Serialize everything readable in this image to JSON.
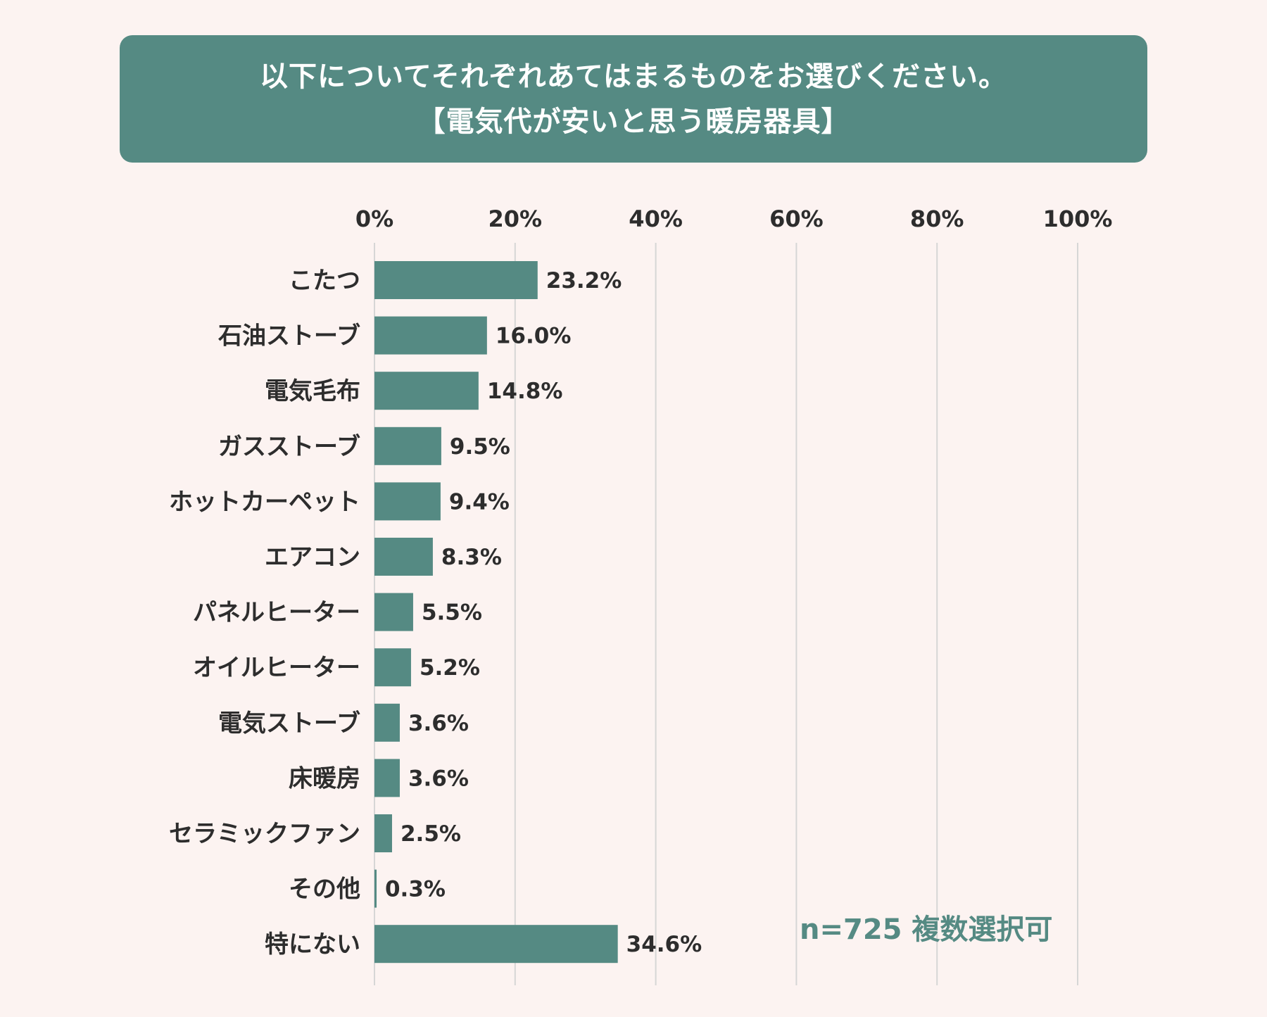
{
  "title": {
    "line1": "以下についてそれぞれあてはまるものをお選びください。",
    "line2": "【電気代が安いと思う暖房器具】"
  },
  "note": "n=725 複数選択可",
  "colors": {
    "bar": "#558a83",
    "banner": "#558a83",
    "background": "#fcf3f1",
    "grid": "#d6d6d6",
    "text": "#2d2d2d"
  },
  "chart_data": {
    "type": "bar",
    "orientation": "horizontal",
    "categories": [
      "こたつ",
      "石油ストーブ",
      "電気毛布",
      "ガスストーブ",
      "ホットカーペット",
      "エアコン",
      "パネルヒーター",
      "オイルヒーター",
      "電気ストーブ",
      "床暖房",
      "セラミックファン",
      "その他",
      "特にない"
    ],
    "values": [
      23.2,
      16.0,
      14.8,
      9.5,
      9.4,
      8.3,
      5.5,
      5.2,
      3.6,
      3.6,
      2.5,
      0.3,
      34.6
    ],
    "value_labels": [
      "23.2%",
      "16.0%",
      "14.8%",
      "9.5%",
      "9.4%",
      "8.3%",
      "5.5%",
      "5.2%",
      "3.6%",
      "3.6%",
      "2.5%",
      "0.3%",
      "34.6%"
    ],
    "xlim": [
      0,
      100
    ],
    "xticks": [
      0,
      20,
      40,
      60,
      80,
      100
    ],
    "xtick_labels": [
      "0%",
      "20%",
      "40%",
      "60%",
      "80%",
      "100%"
    ],
    "axis_position": "top",
    "grid": true,
    "legend": "none"
  }
}
